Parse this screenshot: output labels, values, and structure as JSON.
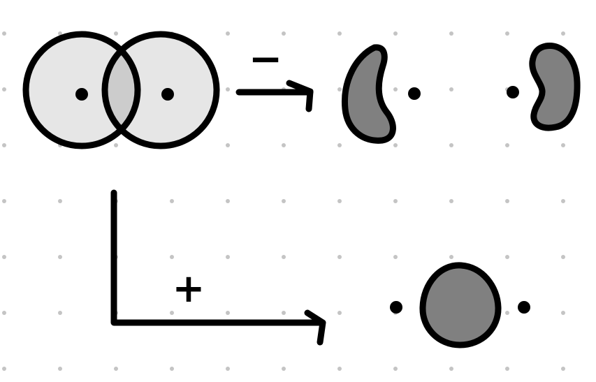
{
  "diagram": {
    "operators": {
      "minus": "−",
      "plus": "+"
    },
    "colors": {
      "ink": "#000000",
      "circle_fill": "#e6e6e6",
      "overlap_fill": "#cccccc",
      "shape_fill": "#808080",
      "grid_dot": "#c4c4c4",
      "background": "#ffffff"
    }
  }
}
